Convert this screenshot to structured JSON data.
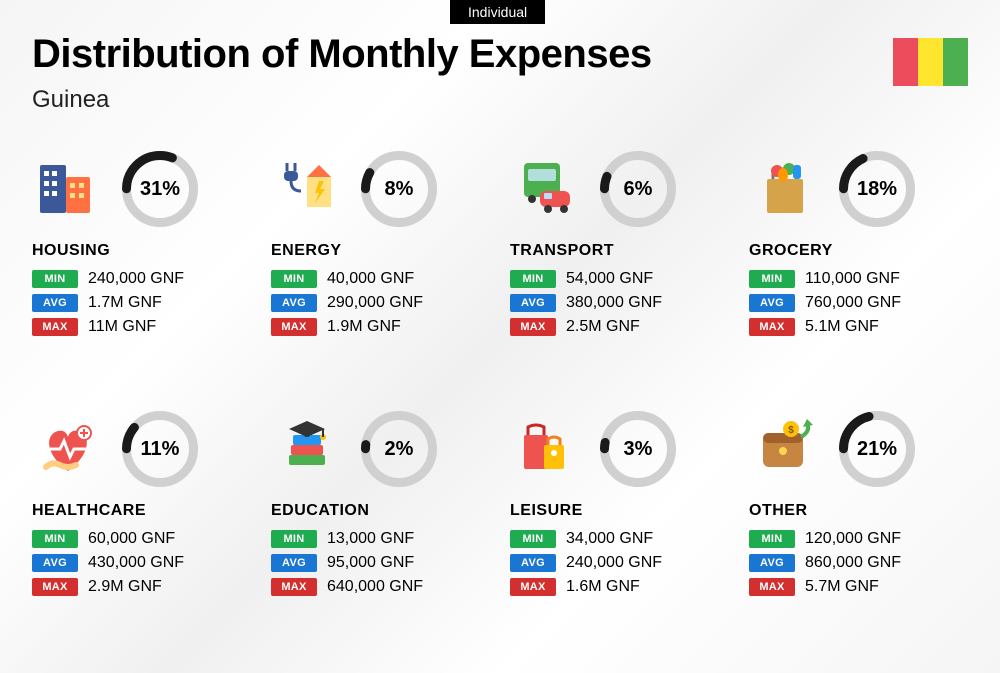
{
  "badge": "Individual",
  "title": "Distribution of Monthly Expenses",
  "subtitle": "Guinea",
  "flag_colors": [
    "#ed4c5c",
    "#ffe62e",
    "#4caf50"
  ],
  "donut": {
    "size": 76,
    "stroke": 9,
    "track_color": "#d0d0d0",
    "fill_color": "#1a1a1a"
  },
  "tags": {
    "min": {
      "label": "MIN",
      "bg": "#1fab4f"
    },
    "avg": {
      "label": "AVG",
      "bg": "#1976d2"
    },
    "max": {
      "label": "MAX",
      "bg": "#d32f2f"
    }
  },
  "categories": [
    {
      "name": "HOUSING",
      "pct": 31,
      "min": "240,000 GNF",
      "avg": "1.7M GNF",
      "max": "11M GNF",
      "icon": "housing"
    },
    {
      "name": "ENERGY",
      "pct": 8,
      "min": "40,000 GNF",
      "avg": "290,000 GNF",
      "max": "1.9M GNF",
      "icon": "energy"
    },
    {
      "name": "TRANSPORT",
      "pct": 6,
      "min": "54,000 GNF",
      "avg": "380,000 GNF",
      "max": "2.5M GNF",
      "icon": "transport"
    },
    {
      "name": "GROCERY",
      "pct": 18,
      "min": "110,000 GNF",
      "avg": "760,000 GNF",
      "max": "5.1M GNF",
      "icon": "grocery"
    },
    {
      "name": "HEALTHCARE",
      "pct": 11,
      "min": "60,000 GNF",
      "avg": "430,000 GNF",
      "max": "2.9M GNF",
      "icon": "healthcare"
    },
    {
      "name": "EDUCATION",
      "pct": 2,
      "min": "13,000 GNF",
      "avg": "95,000 GNF",
      "max": "640,000 GNF",
      "icon": "education"
    },
    {
      "name": "LEISURE",
      "pct": 3,
      "min": "34,000 GNF",
      "avg": "240,000 GNF",
      "max": "1.6M GNF",
      "icon": "leisure"
    },
    {
      "name": "OTHER",
      "pct": 21,
      "min": "120,000 GNF",
      "avg": "860,000 GNF",
      "max": "5.7M GNF",
      "icon": "other"
    }
  ]
}
